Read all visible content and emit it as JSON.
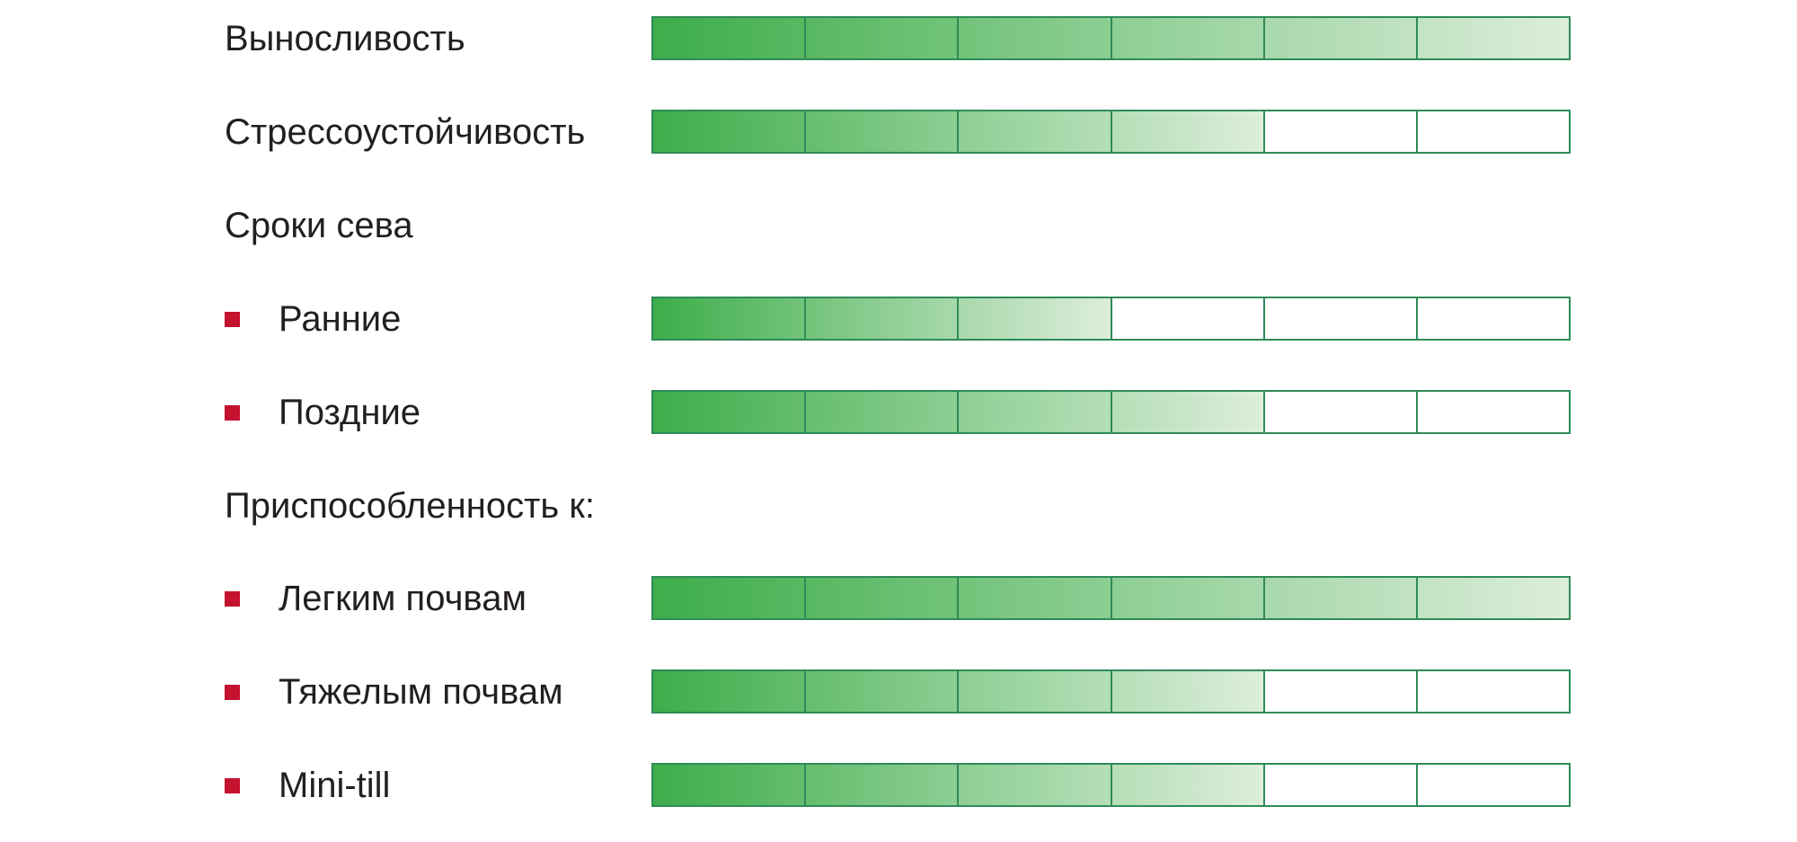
{
  "colors": {
    "fill_start": "#3dad4a",
    "fill_end": "#ddeedb",
    "border": "#2e8b57",
    "bullet": "#c4122f",
    "text": "#231f20"
  },
  "scale_max": 6,
  "rows": [
    {
      "label": "Выносливость",
      "type": "rating",
      "bullet": false,
      "value": 6
    },
    {
      "label": "Стрессоустойчивость",
      "type": "rating",
      "bullet": false,
      "value": 4
    },
    {
      "label": "Сроки сева",
      "type": "heading",
      "bullet": false
    },
    {
      "label": "Ранние",
      "type": "rating",
      "bullet": true,
      "value": 3
    },
    {
      "label": "Поздние",
      "type": "rating",
      "bullet": true,
      "value": 4
    },
    {
      "label": "Приспособленность к:",
      "type": "heading",
      "bullet": false
    },
    {
      "label": "Легким почвам",
      "type": "rating",
      "bullet": true,
      "value": 6
    },
    {
      "label": "Тяжелым почвам",
      "type": "rating",
      "bullet": true,
      "value": 4
    },
    {
      "label": "Mini-till",
      "type": "rating",
      "bullet": true,
      "value": 4
    }
  ]
}
